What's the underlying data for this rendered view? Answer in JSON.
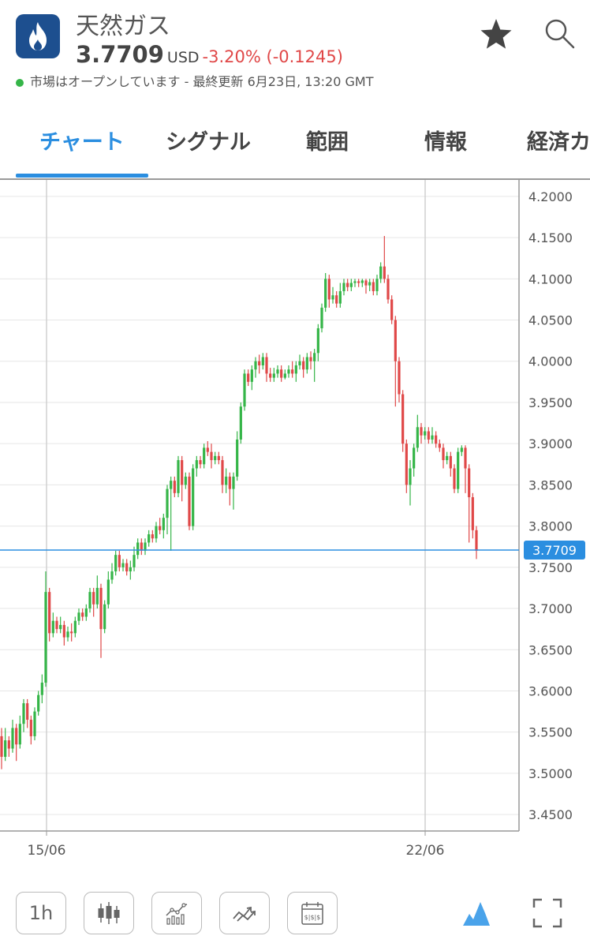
{
  "header": {
    "title": "天然ガス",
    "price": "3.7709",
    "currency": "USD",
    "change": "-3.20% (-0.1245)",
    "status": "市場はオープンしています - 最終更新 6月23日, 13:20 GMT",
    "app_icon": "flame-icon",
    "favorite_icon": "star-icon",
    "search_icon": "search-icon"
  },
  "tabs": [
    {
      "label": "チャート",
      "active": true
    },
    {
      "label": "シグナル"
    },
    {
      "label": "範囲"
    },
    {
      "label": "情報"
    },
    {
      "label": "経済カ"
    }
  ],
  "toolbar": {
    "timeframe": "1h",
    "icons": [
      "candlestick-icon",
      "indicators-icon",
      "compare-icon",
      "calendar-icon",
      "mountain-chart-icon",
      "fullscreen-icon"
    ]
  },
  "colors": {
    "accent": "#2b8ee0",
    "up": "#35b548",
    "down": "#e04848",
    "price_line": "#2b8ee0"
  },
  "chart_data": {
    "type": "candlestick",
    "ytick_labels": [
      "4.2000",
      "4.1500",
      "4.1000",
      "4.0500",
      "4.0000",
      "3.9500",
      "3.9000",
      "3.8500",
      "3.8000",
      "3.7500",
      "3.7000",
      "3.6500",
      "3.6000",
      "3.5500",
      "3.5000",
      "3.4500"
    ],
    "ylim": [
      3.43,
      4.22
    ],
    "xtick_labels": [
      "15/06",
      "22/06"
    ],
    "grid": true,
    "current_price": 3.7709,
    "current_price_label": "3.7709",
    "candles": [
      [
        3.545,
        3.52,
        3.555,
        3.505
      ],
      [
        3.52,
        3.54,
        3.555,
        3.515
      ],
      [
        3.54,
        3.53,
        3.545,
        3.52
      ],
      [
        3.53,
        3.555,
        3.565,
        3.525
      ],
      [
        3.555,
        3.535,
        3.56,
        3.515
      ],
      [
        3.535,
        3.56,
        3.57,
        3.53
      ],
      [
        3.56,
        3.585,
        3.59,
        3.55
      ],
      [
        3.585,
        3.565,
        3.59,
        3.555
      ],
      [
        3.565,
        3.545,
        3.57,
        3.535
      ],
      [
        3.545,
        3.575,
        3.58,
        3.54
      ],
      [
        3.575,
        3.595,
        3.6,
        3.57
      ],
      [
        3.595,
        3.61,
        3.62,
        3.585
      ],
      [
        3.61,
        3.72,
        3.745,
        3.605
      ],
      [
        3.72,
        3.67,
        3.725,
        3.66
      ],
      [
        3.67,
        3.685,
        3.695,
        3.665
      ],
      [
        3.685,
        3.675,
        3.69,
        3.67
      ],
      [
        3.675,
        3.68,
        3.69,
        3.67
      ],
      [
        3.68,
        3.665,
        3.685,
        3.655
      ],
      [
        3.665,
        3.672,
        3.678,
        3.66
      ],
      [
        3.672,
        3.67,
        3.682,
        3.66
      ],
      [
        3.67,
        3.685,
        3.69,
        3.665
      ],
      [
        3.685,
        3.695,
        3.7,
        3.68
      ],
      [
        3.695,
        3.69,
        3.7,
        3.685
      ],
      [
        3.69,
        3.7,
        3.705,
        3.685
      ],
      [
        3.7,
        3.72,
        3.725,
        3.695
      ],
      [
        3.72,
        3.705,
        3.725,
        3.69
      ],
      [
        3.705,
        3.725,
        3.74,
        3.7
      ],
      [
        3.725,
        3.675,
        3.73,
        3.64
      ],
      [
        3.675,
        3.705,
        3.71,
        3.67
      ],
      [
        3.705,
        3.735,
        3.745,
        3.7
      ],
      [
        3.735,
        3.745,
        3.755,
        3.73
      ],
      [
        3.745,
        3.765,
        3.77,
        3.74
      ],
      [
        3.765,
        3.75,
        3.77,
        3.745
      ],
      [
        3.75,
        3.755,
        3.76,
        3.745
      ],
      [
        3.755,
        3.745,
        3.76,
        3.74
      ],
      [
        3.745,
        3.75,
        3.758,
        3.735
      ],
      [
        3.75,
        3.765,
        3.775,
        3.745
      ],
      [
        3.765,
        3.78,
        3.785,
        3.76
      ],
      [
        3.78,
        3.77,
        3.785,
        3.765
      ],
      [
        3.77,
        3.78,
        3.785,
        3.765
      ],
      [
        3.78,
        3.79,
        3.795,
        3.775
      ],
      [
        3.79,
        3.785,
        3.795,
        3.78
      ],
      [
        3.785,
        3.8,
        3.805,
        3.78
      ],
      [
        3.8,
        3.795,
        3.81,
        3.79
      ],
      [
        3.795,
        3.81,
        3.815,
        3.785
      ],
      [
        3.81,
        3.845,
        3.85,
        3.79
      ],
      [
        3.845,
        3.855,
        3.86,
        3.77
      ],
      [
        3.855,
        3.84,
        3.86,
        3.835
      ],
      [
        3.84,
        3.88,
        3.885,
        3.835
      ],
      [
        3.88,
        3.85,
        3.885,
        3.83
      ],
      [
        3.85,
        3.86,
        3.865,
        3.845
      ],
      [
        3.86,
        3.8,
        3.865,
        3.795
      ],
      [
        3.8,
        3.87,
        3.875,
        3.795
      ],
      [
        3.87,
        3.88,
        3.885,
        3.86
      ],
      [
        3.88,
        3.875,
        3.885,
        3.87
      ],
      [
        3.875,
        3.895,
        3.9,
        3.87
      ],
      [
        3.895,
        3.89,
        3.903,
        3.885
      ],
      [
        3.89,
        3.88,
        3.9,
        3.87
      ],
      [
        3.88,
        3.885,
        3.89,
        3.875
      ],
      [
        3.885,
        3.88,
        3.89,
        3.875
      ],
      [
        3.88,
        3.85,
        3.885,
        3.84
      ],
      [
        3.85,
        3.86,
        3.87,
        3.84
      ],
      [
        3.86,
        3.845,
        3.865,
        3.825
      ],
      [
        3.845,
        3.86,
        3.865,
        3.82
      ],
      [
        3.86,
        3.905,
        3.915,
        3.855
      ],
      [
        3.905,
        3.945,
        3.95,
        3.9
      ],
      [
        3.945,
        3.985,
        3.99,
        3.94
      ],
      [
        3.985,
        3.975,
        3.99,
        3.97
      ],
      [
        3.975,
        3.99,
        3.995,
        3.965
      ],
      [
        3.99,
        4.0,
        4.005,
        3.98
      ],
      [
        4.0,
        3.995,
        4.008,
        3.985
      ],
      [
        3.995,
        4.005,
        4.01,
        3.99
      ],
      [
        4.005,
        3.985,
        4.01,
        3.975
      ],
      [
        3.985,
        3.98,
        3.992,
        3.975
      ],
      [
        3.98,
        3.985,
        3.992,
        3.975
      ],
      [
        3.985,
        3.99,
        3.995,
        3.98
      ],
      [
        3.99,
        3.98,
        3.995,
        3.975
      ],
      [
        3.98,
        3.985,
        3.99,
        3.978
      ],
      [
        3.985,
        3.99,
        3.995,
        3.98
      ],
      [
        3.99,
        3.985,
        4.0,
        3.98
      ],
      [
        3.985,
        3.995,
        4.0,
        3.975
      ],
      [
        3.995,
        4.0,
        4.008,
        3.99
      ],
      [
        4.0,
        3.99,
        4.005,
        3.98
      ],
      [
        3.99,
        4.005,
        4.01,
        3.985
      ],
      [
        4.005,
        4.0,
        4.012,
        3.99
      ],
      [
        4.0,
        4.01,
        4.015,
        3.975
      ],
      [
        4.01,
        4.04,
        4.045,
        4.0
      ],
      [
        4.04,
        4.065,
        4.07,
        4.035
      ],
      [
        4.065,
        4.1,
        4.107,
        4.06
      ],
      [
        4.1,
        4.075,
        4.105,
        4.065
      ],
      [
        4.075,
        4.08,
        4.09,
        4.07
      ],
      [
        4.08,
        4.07,
        4.085,
        4.065
      ],
      [
        4.07,
        4.085,
        4.095,
        4.065
      ],
      [
        4.085,
        4.095,
        4.1,
        4.08
      ],
      [
        4.095,
        4.09,
        4.1,
        4.085
      ],
      [
        4.09,
        4.095,
        4.1,
        4.085
      ],
      [
        4.095,
        4.097,
        4.1,
        4.09
      ],
      [
        4.097,
        4.095,
        4.1,
        4.09
      ],
      [
        4.095,
        4.098,
        4.1,
        4.09
      ],
      [
        4.098,
        4.092,
        4.1,
        4.082
      ],
      [
        4.092,
        4.096,
        4.1,
        4.085
      ],
      [
        4.096,
        4.085,
        4.1,
        4.08
      ],
      [
        4.085,
        4.1,
        4.105,
        4.08
      ],
      [
        4.1,
        4.115,
        4.12,
        4.095
      ],
      [
        4.115,
        4.1,
        4.152,
        4.095
      ],
      [
        4.1,
        4.075,
        4.105,
        4.07
      ],
      [
        4.075,
        4.05,
        4.08,
        4.045
      ],
      [
        4.05,
        4.0,
        4.055,
        3.945
      ],
      [
        4.0,
        3.96,
        4.005,
        3.95
      ],
      [
        3.96,
        3.9,
        3.965,
        3.89
      ],
      [
        3.9,
        3.85,
        3.905,
        3.84
      ],
      [
        3.85,
        3.87,
        3.88,
        3.825
      ],
      [
        3.87,
        3.895,
        3.9,
        3.86
      ],
      [
        3.895,
        3.92,
        3.935,
        3.89
      ],
      [
        3.92,
        3.91,
        3.925,
        3.9
      ],
      [
        3.91,
        3.915,
        3.92,
        3.905
      ],
      [
        3.915,
        3.905,
        3.92,
        3.9
      ],
      [
        3.905,
        3.91,
        3.92,
        3.9
      ],
      [
        3.91,
        3.9,
        3.915,
        3.895
      ],
      [
        3.9,
        3.895,
        3.905,
        3.89
      ],
      [
        3.895,
        3.88,
        3.9,
        3.87
      ],
      [
        3.88,
        3.885,
        3.89,
        3.875
      ],
      [
        3.885,
        3.87,
        3.89,
        3.86
      ],
      [
        3.87,
        3.845,
        3.875,
        3.84
      ],
      [
        3.845,
        3.89,
        3.895,
        3.84
      ],
      [
        3.89,
        3.895,
        3.898,
        3.885
      ],
      [
        3.895,
        3.87,
        3.898,
        3.84
      ],
      [
        3.87,
        3.835,
        3.875,
        3.78
      ],
      [
        3.835,
        3.795,
        3.84,
        3.785
      ],
      [
        3.795,
        3.77,
        3.8,
        3.76
      ]
    ]
  }
}
